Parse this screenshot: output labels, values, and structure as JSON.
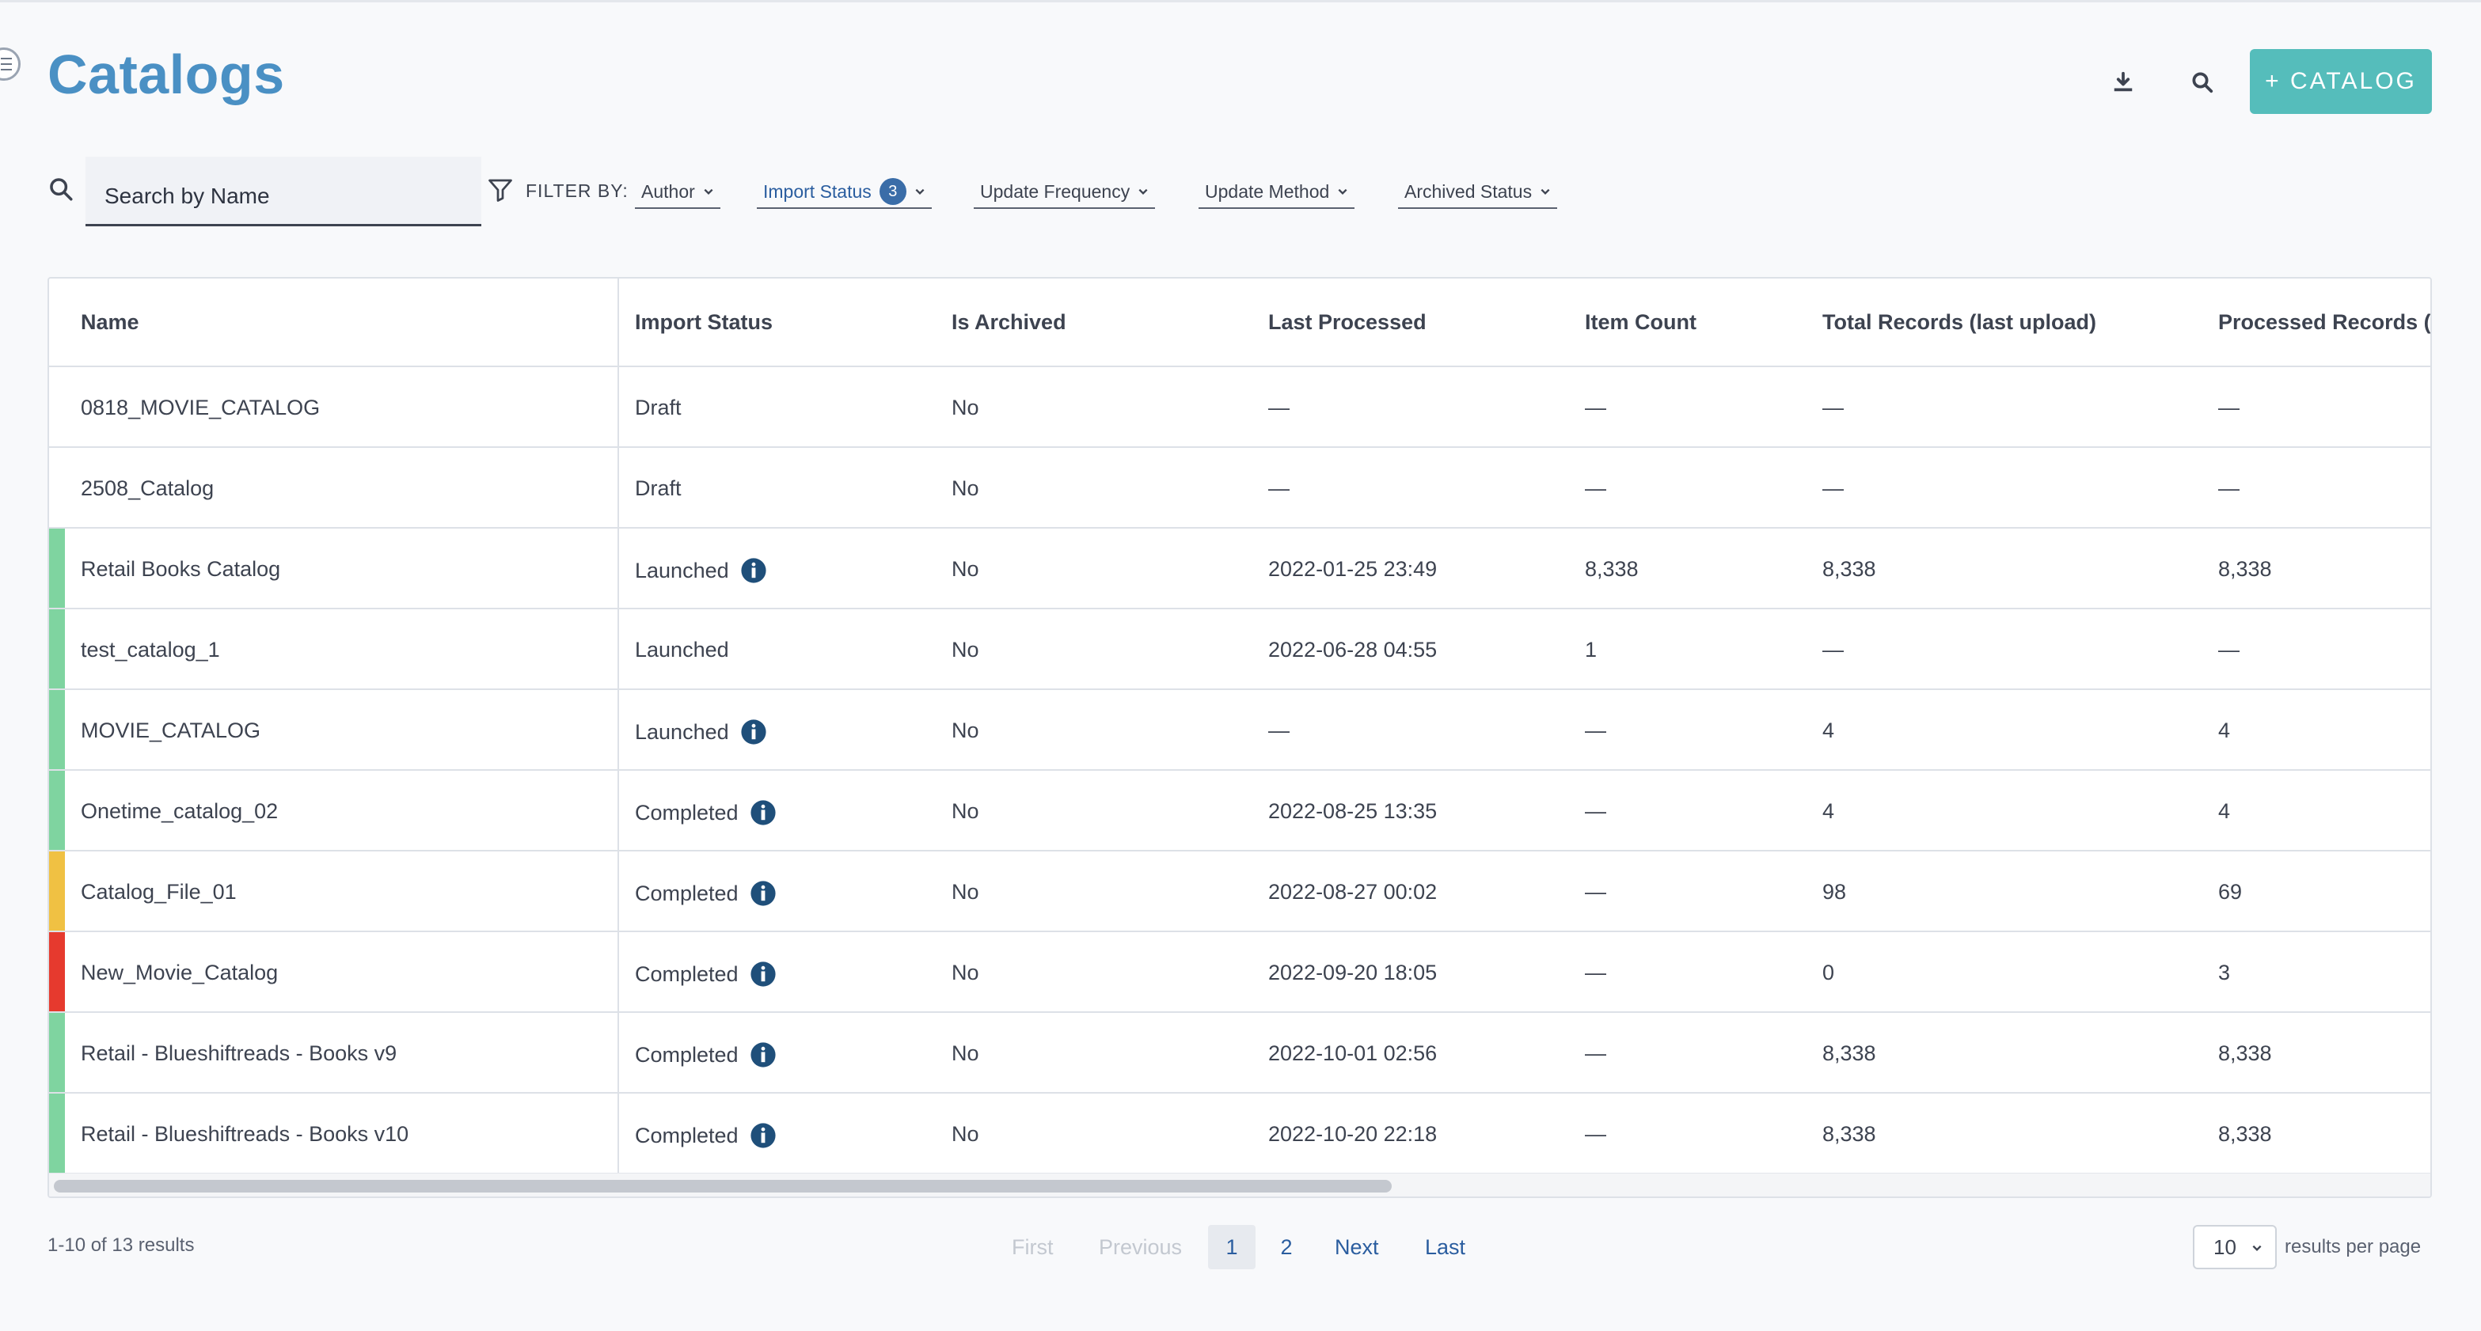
{
  "page": {
    "title": "Catalogs"
  },
  "header": {
    "add_catalog_label": "+ CATALOG"
  },
  "search": {
    "placeholder": "Search by Name"
  },
  "filters": {
    "label": "FILTER BY:",
    "author": "Author",
    "import_status": "Import Status",
    "import_status_count": "3",
    "update_frequency": "Update Frequency",
    "update_method": "Update Method",
    "archived_status": "Archived Status"
  },
  "table": {
    "columns": [
      "Name",
      "Import Status",
      "Is Archived",
      "Last Processed",
      "Item Count",
      "Total Records (last upload)",
      "Processed Records ("
    ],
    "rows": [
      {
        "strip": "",
        "name": "0818_MOVIE_CATALOG",
        "status": "Draft",
        "info": false,
        "archived": "No",
        "last": "—",
        "items": "—",
        "total": "—",
        "processed": "—"
      },
      {
        "strip": "",
        "name": "2508_Catalog",
        "status": "Draft",
        "info": false,
        "archived": "No",
        "last": "—",
        "items": "—",
        "total": "—",
        "processed": "—"
      },
      {
        "strip": "#7fd4a0",
        "name": "Retail Books Catalog",
        "status": "Launched",
        "info": true,
        "archived": "No",
        "last": "2022-01-25 23:49",
        "items": "8,338",
        "total": "8,338",
        "processed": "8,338"
      },
      {
        "strip": "#7fd4a0",
        "name": "test_catalog_1",
        "status": "Launched",
        "info": false,
        "archived": "No",
        "last": "2022-06-28 04:55",
        "items": "1",
        "total": "—",
        "processed": "—"
      },
      {
        "strip": "#7fd4a0",
        "name": "MOVIE_CATALOG",
        "status": "Launched",
        "info": true,
        "archived": "No",
        "last": "—",
        "items": "—",
        "total": "4",
        "processed": "4"
      },
      {
        "strip": "#7fd4a0",
        "name": "Onetime_catalog_02",
        "status": "Completed",
        "info": true,
        "archived": "No",
        "last": "2022-08-25 13:35",
        "items": "—",
        "total": "4",
        "processed": "4"
      },
      {
        "strip": "#f0c143",
        "name": "Catalog_File_01",
        "status": "Completed",
        "info": true,
        "archived": "No",
        "last": "2022-08-27 00:02",
        "items": "—",
        "total": "98",
        "processed": "69"
      },
      {
        "strip": "#e63a2e",
        "name": "New_Movie_Catalog",
        "status": "Completed",
        "info": true,
        "archived": "No",
        "last": "2022-09-20 18:05",
        "items": "—",
        "total": "0",
        "processed": "3"
      },
      {
        "strip": "#7fd4a0",
        "name": "Retail - Blueshiftreads - Books v9",
        "status": "Completed",
        "info": true,
        "archived": "No",
        "last": "2022-10-01 02:56",
        "items": "—",
        "total": "8,338",
        "processed": "8,338"
      },
      {
        "strip": "#7fd4a0",
        "name": "Retail - Blueshiftreads - Books v10",
        "status": "Completed",
        "info": true,
        "archived": "No",
        "last": "2022-10-20 22:18",
        "items": "—",
        "total": "8,338",
        "processed": "8,338"
      }
    ]
  },
  "footer": {
    "results": "1-10 of 13 results",
    "first": "First",
    "previous": "Previous",
    "page1": "1",
    "page2": "2",
    "next": "Next",
    "last": "Last",
    "per_page_value": "10",
    "per_page_label": "results per page"
  },
  "colors": {
    "accent": "#55bdbb",
    "title": "#4a90c4",
    "link": "#2a5d9f",
    "info_icon": "#1f4f7a"
  },
  "icons": [
    "menu-icon",
    "download-icon",
    "search-icon",
    "filter-icon",
    "chevron-down-icon",
    "info-icon"
  ]
}
